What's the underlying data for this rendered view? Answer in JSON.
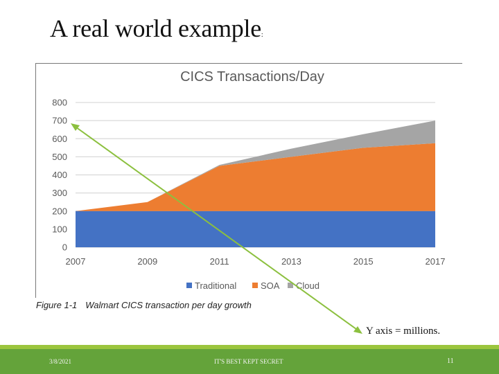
{
  "slide": {
    "title": "A real world example",
    "title_suffix": ":",
    "annotation": "Y axis = millions.",
    "caption_label": "Figure 1-1",
    "caption_text": "Walmart CICS transaction per day growth"
  },
  "footer": {
    "date": "3/8/2021",
    "center_text": "IT'S BEST KEPT SECRET",
    "page_number": "11"
  },
  "colors": {
    "traditional": "#4472c4",
    "soa": "#ed7d31",
    "cloud": "#a5a5a5",
    "arrow": "#8cc03f",
    "footer_dark": "#64a33a",
    "footer_light": "#9bc53d"
  },
  "chart_data": {
    "type": "area",
    "stacked": true,
    "title": "CICS Transactions/Day",
    "xlabel": "",
    "ylabel": "",
    "y_unit_note": "millions",
    "categories": [
      "2007",
      "2009",
      "2011",
      "2013",
      "2015",
      "2017"
    ],
    "series": [
      {
        "name": "Traditional",
        "color": "#4472c4",
        "values": [
          200,
          200,
          200,
          200,
          200,
          200
        ]
      },
      {
        "name": "SOA",
        "color": "#ed7d31",
        "values": [
          0,
          50,
          250,
          300,
          350,
          375
        ]
      },
      {
        "name": "Cloud",
        "color": "#a5a5a5",
        "values": [
          0,
          0,
          5,
          45,
          75,
          125
        ]
      }
    ],
    "yticks": [
      "0",
      "100",
      "200",
      "300",
      "400",
      "500",
      "600",
      "700",
      "800"
    ],
    "ylim": [
      0,
      800
    ],
    "grid": true,
    "legend_position": "bottom",
    "legend": [
      "Traditional",
      "SOA",
      "Cloud"
    ]
  }
}
